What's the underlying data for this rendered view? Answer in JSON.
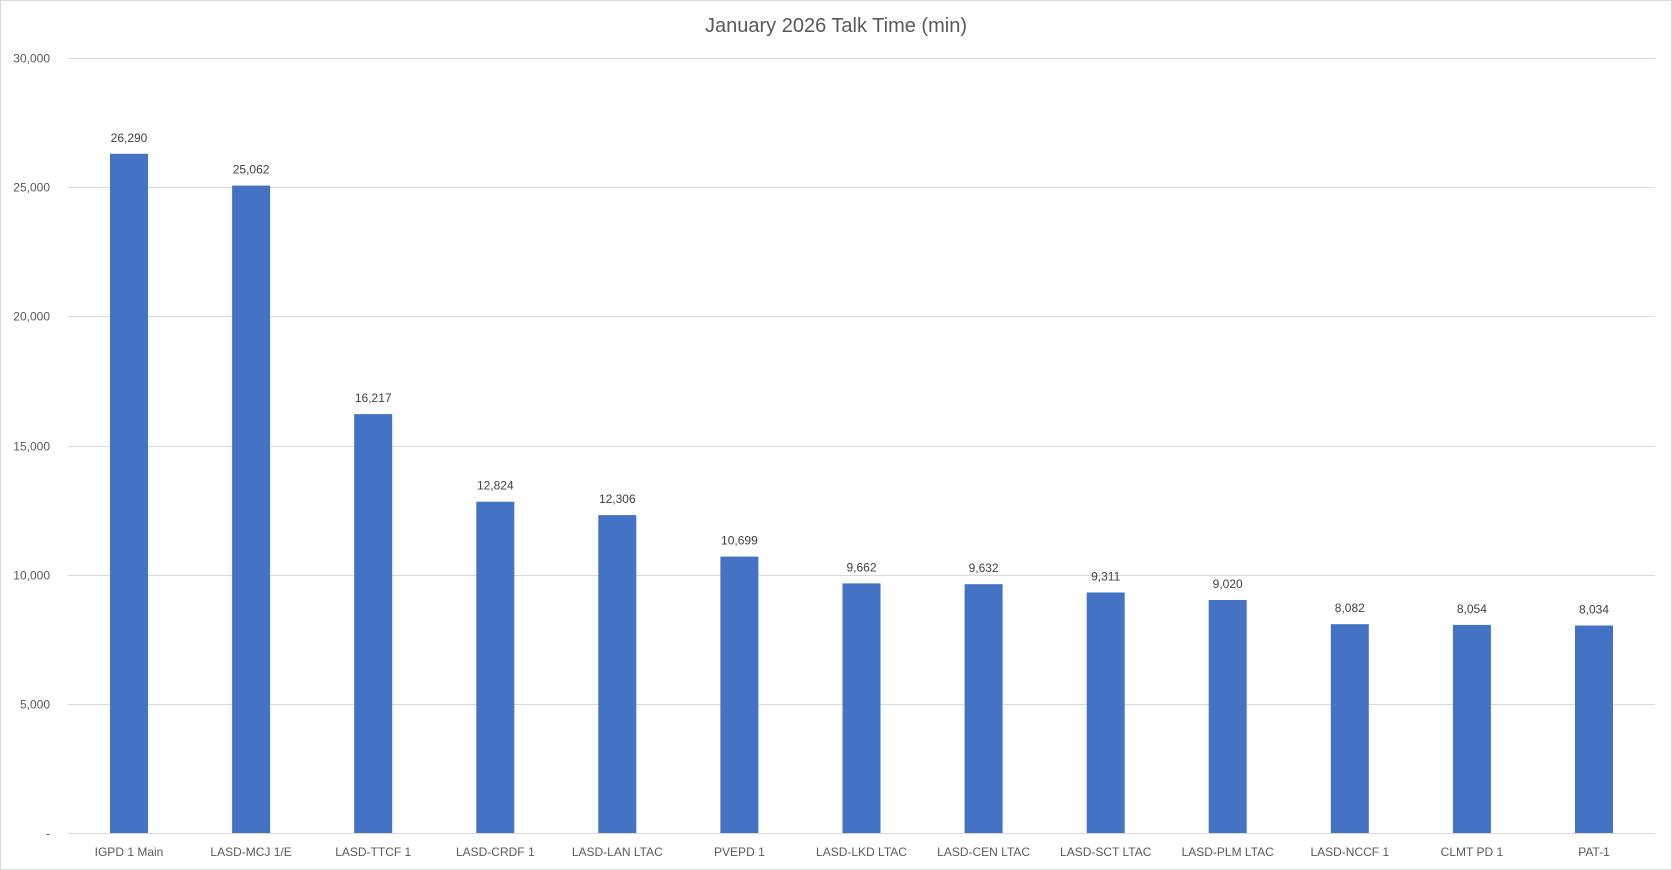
{
  "chart_data": {
    "type": "bar",
    "title": "January 2026 Talk Time (min)",
    "xlabel": "",
    "ylabel": "",
    "categories": [
      "IGPD 1 Main",
      "LASD-MCJ 1/E",
      "LASD-TTCF 1",
      "LASD-CRDF 1",
      "LASD-LAN LTAC",
      "PVEPD 1",
      "LASD-LKD LTAC",
      "LASD-CEN LTAC",
      "LASD-SCT LTAC",
      "LASD-PLM LTAC",
      "LASD-NCCF 1",
      "CLMT PD 1",
      "PAT-1"
    ],
    "values": [
      26290,
      25062,
      16217,
      12824,
      12306,
      10699,
      9662,
      9632,
      9311,
      9020,
      8082,
      8054,
      8034
    ],
    "data_labels": [
      "26,290",
      "25,062",
      "16,217",
      "12,824",
      "12,306",
      "10,699",
      "9,662",
      "9,632",
      "9,311",
      "9,020",
      "8,082",
      "8,054",
      "8,034"
    ],
    "ylim": [
      0,
      30000
    ],
    "yticks": [
      0,
      5000,
      10000,
      15000,
      20000,
      25000,
      30000
    ],
    "ytick_labels": [
      "-",
      "5,000",
      "10,000",
      "15,000",
      "20,000",
      "25,000",
      "30,000"
    ],
    "grid": true,
    "legend": "none",
    "colors": {
      "bar": "#4472c4",
      "gridline": "#d9d9d9",
      "text": "#595959"
    }
  }
}
